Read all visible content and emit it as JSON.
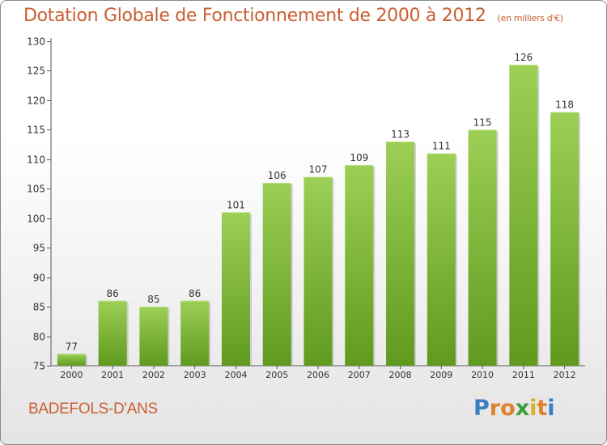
{
  "chart_data": {
    "type": "bar",
    "title": "Dotation Globale de Fonctionnement de 2000 à 2012",
    "subtitle": "(en milliers d'€)",
    "categories": [
      "2000",
      "2001",
      "2002",
      "2003",
      "2004",
      "2005",
      "2006",
      "2007",
      "2008",
      "2009",
      "2010",
      "2011",
      "2012"
    ],
    "values": [
      77,
      86,
      85,
      86,
      101,
      106,
      107,
      109,
      113,
      111,
      115,
      126,
      118
    ],
    "ylim": [
      75,
      130
    ],
    "yticks": [
      75,
      80,
      85,
      90,
      95,
      100,
      105,
      110,
      115,
      120,
      125,
      130
    ],
    "grid": false,
    "bar_color": "#7db83a"
  },
  "footer": {
    "commune": "BADEFOLS-D'ANS",
    "logo_letters": [
      "P",
      "r",
      "o",
      "x",
      "i",
      "t",
      "i"
    ],
    "logo_colors": [
      "#3a7fc4",
      "#e0822a",
      "#e0822a",
      "#3a9f3a",
      "#d8b21f",
      "#e0822a",
      "#3a7fc4"
    ]
  }
}
